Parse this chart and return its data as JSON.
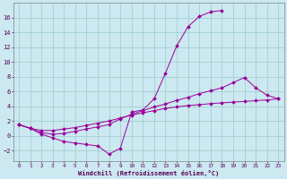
{
  "xlabel": "Windchill (Refroidissement éolien,°C)",
  "bg_color": "#cce8f0",
  "line_color": "#990099",
  "grid_color": "#99cccc",
  "xlim": [
    -0.5,
    23.5
  ],
  "ylim": [
    -3.5,
    18.0
  ],
  "xticks": [
    0,
    1,
    2,
    3,
    4,
    5,
    6,
    7,
    8,
    9,
    10,
    11,
    12,
    13,
    14,
    15,
    16,
    17,
    18,
    19,
    20,
    21,
    22,
    23
  ],
  "yticks": [
    -2,
    0,
    2,
    4,
    6,
    8,
    10,
    12,
    14,
    16
  ],
  "curve1_x": [
    0,
    1,
    2,
    3,
    4,
    5,
    6,
    7,
    8,
    9,
    10,
    11,
    12,
    13,
    14,
    15,
    16,
    17,
    18
  ],
  "curve1_y": [
    1.5,
    1.0,
    0.2,
    -0.3,
    -0.8,
    -1.0,
    -1.2,
    -1.4,
    -2.5,
    -1.7,
    3.2,
    3.5,
    5.0,
    8.5,
    12.2,
    14.8,
    16.2,
    16.8,
    17.0
  ],
  "curve2_x": [
    0,
    1,
    2,
    3,
    4,
    5,
    6,
    7,
    8,
    9,
    10,
    11,
    12,
    13,
    14,
    15,
    16,
    17,
    18,
    19,
    20,
    21,
    22,
    23
  ],
  "curve2_y": [
    1.5,
    1.0,
    0.4,
    0.2,
    0.3,
    0.6,
    0.9,
    1.2,
    1.5,
    2.3,
    2.9,
    3.4,
    3.9,
    4.3,
    4.8,
    5.2,
    5.7,
    6.1,
    6.5,
    7.2,
    7.9,
    6.5,
    5.5,
    5.0
  ],
  "curve3_x": [
    0,
    1,
    2,
    3,
    4,
    5,
    6,
    7,
    8,
    9,
    10,
    11,
    12,
    13,
    14,
    15,
    16,
    17,
    18,
    19,
    20,
    21,
    22,
    23
  ],
  "curve3_y": [
    1.5,
    1.0,
    0.7,
    0.7,
    0.9,
    1.1,
    1.4,
    1.7,
    2.0,
    2.4,
    2.8,
    3.1,
    3.4,
    3.7,
    3.9,
    4.1,
    4.2,
    4.35,
    4.45,
    4.55,
    4.65,
    4.75,
    4.85,
    5.0
  ]
}
